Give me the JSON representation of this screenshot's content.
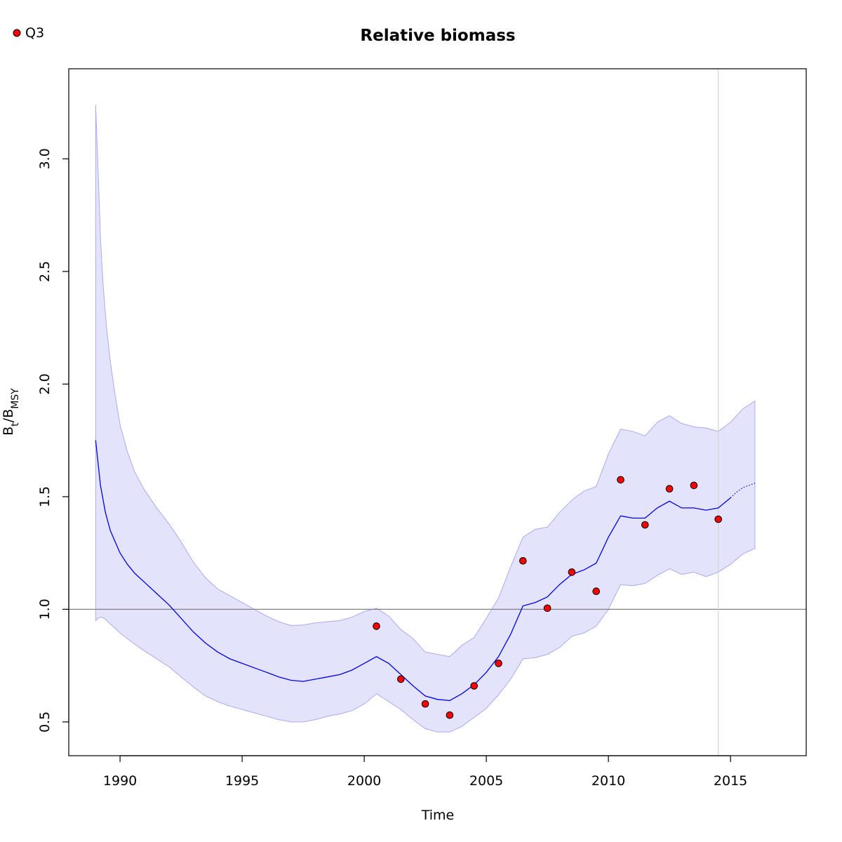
{
  "chart_data": {
    "type": "line",
    "title": "Relative biomass",
    "xlabel": "Time",
    "ylabel": {
      "main": "B",
      "sub1": "t",
      "sep": "/B",
      "sub2": "MSY"
    },
    "xlim": [
      1987.9,
      2018.1
    ],
    "ylim": [
      0.35,
      3.4
    ],
    "xticks": [
      1990,
      1995,
      2000,
      2005,
      2010,
      2015
    ],
    "xtick_labels": [
      "1990",
      "1995",
      "2000",
      "2005",
      "2010",
      "2015"
    ],
    "yticks": [
      0.5,
      1.0,
      1.5,
      2.0,
      2.5,
      3.0
    ],
    "ytick_labels": [
      "0.5",
      "1.0",
      "1.5",
      "2.0",
      "2.5",
      "3.0"
    ],
    "reference_line_y": 1.0,
    "vertical_line_x": 2014.5,
    "grid": false,
    "legend": {
      "position": "top-left",
      "entries": [
        {
          "name": "Q3",
          "color": "#ff0000"
        }
      ]
    },
    "colors": {
      "line": "#0000ee",
      "band_fill": "#e3e3fb",
      "band_edge": "#aaaaf5",
      "points": "#ff0000",
      "refline": "#808080",
      "vline": "#d3d3d3"
    },
    "series": [
      {
        "name": "estimate",
        "x": [
          1989.0,
          1989.2,
          1989.4,
          1989.6,
          1989.8,
          1990.0,
          1990.3,
          1990.6,
          1991.0,
          1991.5,
          1992.0,
          1992.5,
          1993.0,
          1993.5,
          1994.0,
          1994.5,
          1995.0,
          1995.5,
          1996.0,
          1996.5,
          1997.0,
          1997.5,
          1998.0,
          1998.5,
          1999.0,
          1999.5,
          2000.0,
          2000.5,
          2001.0,
          2001.5,
          2002.0,
          2002.5,
          2003.0,
          2003.5,
          2004.0,
          2004.5,
          2005.0,
          2005.5,
          2006.0,
          2006.5,
          2007.0,
          2007.5,
          2008.0,
          2008.5,
          2009.0,
          2009.5,
          2010.0,
          2010.5,
          2011.0,
          2011.5,
          2012.0,
          2012.5,
          2013.0,
          2013.5,
          2014.0,
          2014.5,
          2015.0
        ],
        "values": [
          1.75,
          1.55,
          1.43,
          1.35,
          1.3,
          1.25,
          1.2,
          1.16,
          1.12,
          1.07,
          1.02,
          0.96,
          0.9,
          0.85,
          0.81,
          0.78,
          0.76,
          0.74,
          0.72,
          0.7,
          0.685,
          0.68,
          0.69,
          0.7,
          0.71,
          0.73,
          0.76,
          0.79,
          0.76,
          0.71,
          0.66,
          0.615,
          0.6,
          0.595,
          0.625,
          0.665,
          0.72,
          0.79,
          0.89,
          1.015,
          1.03,
          1.055,
          1.11,
          1.155,
          1.175,
          1.205,
          1.32,
          1.415,
          1.405,
          1.405,
          1.45,
          1.48,
          1.45,
          1.45,
          1.44,
          1.45,
          1.495
        ]
      },
      {
        "name": "prediction",
        "x": [
          2015.0,
          2015.25,
          2015.5,
          2015.75,
          2016.0
        ],
        "values": [
          1.495,
          1.52,
          1.54,
          1.55,
          1.56
        ]
      },
      {
        "name": "upper",
        "x": [
          1989.0,
          1989.05,
          1989.1,
          1989.2,
          1989.3,
          1989.45,
          1989.6,
          1989.8,
          1990.0,
          1990.3,
          1990.6,
          1991.0,
          1991.5,
          1992.0,
          1992.5,
          1993.0,
          1993.5,
          1994.0,
          1994.5,
          1995.0,
          1995.5,
          1996.0,
          1996.5,
          1997.0,
          1997.5,
          1998.0,
          1998.5,
          1999.0,
          1999.5,
          2000.0,
          2000.5,
          2001.0,
          2001.5,
          2002.0,
          2002.5,
          2003.0,
          2003.5,
          2004.0,
          2004.5,
          2005.0,
          2005.5,
          2006.0,
          2006.5,
          2007.0,
          2007.5,
          2008.0,
          2008.5,
          2009.0,
          2009.5,
          2010.0,
          2010.5,
          2011.0,
          2011.5,
          2012.0,
          2012.5,
          2013.0,
          2013.5,
          2014.0,
          2014.5,
          2015.0,
          2015.5,
          2016.0
        ],
        "values": [
          3.24,
          3.1,
          2.95,
          2.65,
          2.45,
          2.25,
          2.1,
          1.95,
          1.82,
          1.7,
          1.61,
          1.53,
          1.45,
          1.38,
          1.3,
          1.21,
          1.14,
          1.09,
          1.06,
          1.03,
          1.0,
          0.97,
          0.945,
          0.928,
          0.93,
          0.94,
          0.945,
          0.95,
          0.965,
          0.99,
          1.005,
          0.97,
          0.91,
          0.87,
          0.81,
          0.8,
          0.79,
          0.84,
          0.875,
          0.96,
          1.05,
          1.19,
          1.32,
          1.355,
          1.365,
          1.43,
          1.485,
          1.525,
          1.545,
          1.69,
          1.8,
          1.79,
          1.77,
          1.83,
          1.86,
          1.825,
          1.81,
          1.805,
          1.79,
          1.83,
          1.89,
          1.925
        ]
      },
      {
        "name": "lower",
        "x": [
          1989.0,
          1989.1,
          1989.2,
          1989.35,
          1989.6,
          1989.8,
          1990.0,
          1990.3,
          1990.6,
          1991.0,
          1991.5,
          1992.0,
          1992.5,
          1993.0,
          1993.5,
          1994.0,
          1994.5,
          1995.0,
          1995.5,
          1996.0,
          1996.5,
          1997.0,
          1997.5,
          1998.0,
          1998.5,
          1999.0,
          1999.5,
          2000.0,
          2000.5,
          2001.0,
          2001.5,
          2002.0,
          2002.5,
          2003.0,
          2003.5,
          2004.0,
          2004.5,
          2005.0,
          2005.5,
          2006.0,
          2006.5,
          2007.0,
          2007.5,
          2008.0,
          2008.5,
          2009.0,
          2009.5,
          2010.0,
          2010.5,
          2011.0,
          2011.5,
          2012.0,
          2012.5,
          2013.0,
          2013.5,
          2014.0,
          2014.5,
          2015.0,
          2015.5,
          2016.0
        ],
        "values": [
          0.95,
          0.96,
          0.965,
          0.96,
          0.935,
          0.915,
          0.895,
          0.87,
          0.845,
          0.815,
          0.78,
          0.745,
          0.7,
          0.655,
          0.615,
          0.59,
          0.57,
          0.555,
          0.54,
          0.525,
          0.51,
          0.5,
          0.5,
          0.51,
          0.525,
          0.535,
          0.55,
          0.58,
          0.625,
          0.59,
          0.555,
          0.51,
          0.47,
          0.455,
          0.455,
          0.48,
          0.52,
          0.56,
          0.62,
          0.69,
          0.78,
          0.785,
          0.8,
          0.83,
          0.88,
          0.895,
          0.925,
          1.0,
          1.11,
          1.105,
          1.115,
          1.15,
          1.18,
          1.155,
          1.165,
          1.145,
          1.165,
          1.2,
          1.245,
          1.27
        ]
      }
    ],
    "points": {
      "name": "Q3",
      "x": [
        2000.5,
        2001.5,
        2002.5,
        2003.5,
        2004.5,
        2005.5,
        2006.5,
        2007.5,
        2008.5,
        2009.5,
        2010.5,
        2011.5,
        2012.5,
        2013.5,
        2014.5
      ],
      "y": [
        0.925,
        0.69,
        0.58,
        0.53,
        0.66,
        0.76,
        1.215,
        1.005,
        1.165,
        1.08,
        1.575,
        1.375,
        1.535,
        1.55,
        1.4
      ]
    }
  }
}
